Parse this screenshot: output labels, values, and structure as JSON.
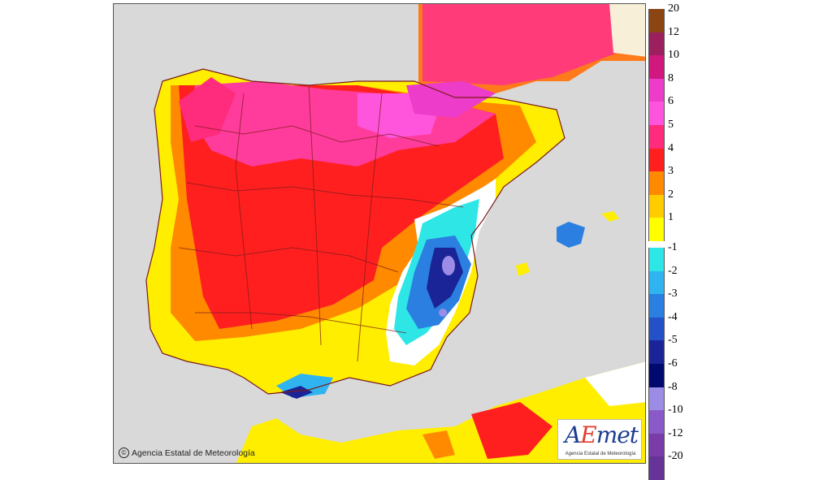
{
  "map": {
    "copyright": "Agencia Estatal de Meteorología",
    "copyright_symbol": "©",
    "logo": {
      "text_a": "A",
      "text_e": "E",
      "text_met": "met",
      "subtitle": "Agencia Estatal de Meteorología"
    }
  },
  "legend": {
    "positive": [
      {
        "label": "20",
        "color": "#8b4513"
      },
      {
        "label": "12",
        "color": "#9c1f5e"
      },
      {
        "label": "10",
        "color": "#d0187f"
      },
      {
        "label": "8",
        "color": "#ec3cc9"
      },
      {
        "label": "6",
        "color": "#ff55dd"
      },
      {
        "label": "5",
        "color": "#ff2b7c"
      },
      {
        "label": "4",
        "color": "#ff1f1f"
      },
      {
        "label": "3",
        "color": "#ff8a00"
      },
      {
        "label": "2",
        "color": "#ffcc00"
      },
      {
        "label": "1",
        "color": "#ffff00"
      }
    ],
    "negative": [
      {
        "label": "-1",
        "color": "#2ee6e6"
      },
      {
        "label": "-2",
        "color": "#30b4f0"
      },
      {
        "label": "-3",
        "color": "#2a7fe0"
      },
      {
        "label": "-4",
        "color": "#2450c8"
      },
      {
        "label": "-5",
        "color": "#1a2496"
      },
      {
        "label": "-6",
        "color": "#000a6e"
      },
      {
        "label": "-8",
        "color": "#9d8ce6"
      },
      {
        "label": "-10",
        "color": "#8a5ac8"
      },
      {
        "label": "-12",
        "color": "#7a3ca8"
      },
      {
        "label": "-20",
        "color": "#663399"
      }
    ]
  }
}
